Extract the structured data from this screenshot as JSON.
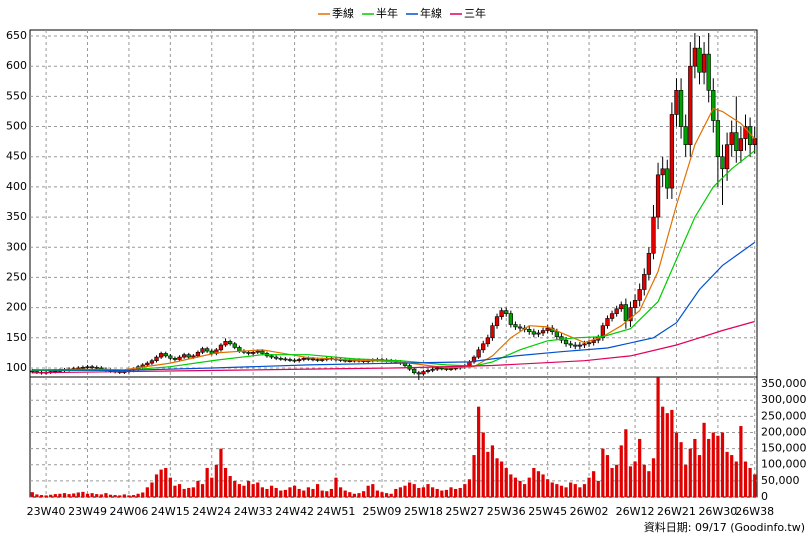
{
  "chart_data": {
    "type": "candlestick",
    "categories": [
      null,
      null,
      null,
      "23W40",
      null,
      null,
      null,
      null,
      null,
      null,
      null,
      null,
      "23W49",
      null,
      null,
      null,
      null,
      null,
      null,
      null,
      null,
      "24W06",
      null,
      null,
      null,
      null,
      null,
      null,
      null,
      null,
      "24W15",
      null,
      null,
      null,
      null,
      null,
      null,
      null,
      null,
      "24W24",
      null,
      null,
      null,
      null,
      null,
      null,
      null,
      null,
      "24W33",
      null,
      null,
      null,
      null,
      null,
      null,
      null,
      null,
      "24W42",
      null,
      null,
      null,
      null,
      null,
      null,
      null,
      null,
      "24W51",
      null,
      null,
      null,
      null,
      null,
      null,
      null,
      null,
      null,
      "25W09",
      null,
      null,
      null,
      null,
      null,
      null,
      null,
      null,
      "25W18",
      null,
      null,
      null,
      null,
      null,
      null,
      null,
      null,
      "25W27",
      null,
      null,
      null,
      null,
      null,
      null,
      null,
      null,
      "25W36",
      null,
      null,
      null,
      null,
      null,
      null,
      null,
      null,
      "25W45",
      null,
      null,
      null,
      null,
      null,
      null,
      null,
      null,
      "26W02",
      null,
      null,
      null,
      null,
      null,
      null,
      null,
      null,
      null,
      "26W12",
      null,
      null,
      null,
      null,
      null,
      null,
      null,
      null,
      "26W21",
      null,
      null,
      null,
      null,
      null,
      null,
      null,
      null,
      "26W30",
      null,
      null,
      null,
      null,
      null,
      null,
      null,
      "26W38"
    ],
    "open": [
      95,
      94,
      93,
      92,
      93,
      94,
      95,
      96,
      97,
      98,
      99,
      100,
      101,
      102,
      101,
      100,
      98,
      96,
      95,
      94,
      93,
      94,
      96,
      98,
      102,
      105,
      108,
      112,
      118,
      124,
      120,
      116,
      114,
      118,
      122,
      118,
      120,
      126,
      132,
      128,
      124,
      130,
      138,
      144,
      140,
      134,
      128,
      126,
      124,
      126,
      128,
      124,
      120,
      118,
      116,
      115,
      114,
      113,
      112,
      114,
      116,
      115,
      114,
      113,
      114,
      116,
      115,
      114,
      113,
      112,
      112,
      113,
      112,
      111,
      112,
      113,
      114,
      113,
      112,
      111,
      110,
      108,
      104,
      98,
      92,
      90,
      94,
      96,
      98,
      100,
      99,
      98,
      99,
      100,
      102,
      104,
      110,
      118,
      130,
      140,
      150,
      170,
      185,
      195,
      190,
      172,
      168,
      166,
      164,
      160,
      156,
      158,
      162,
      166,
      160,
      152,
      146,
      140,
      138,
      136,
      138,
      140,
      142,
      146,
      150,
      170,
      182,
      190,
      198,
      205,
      178,
      200,
      212,
      230,
      255,
      290,
      350,
      420,
      430,
      398,
      520,
      560,
      500,
      470,
      600,
      630,
      590,
      620,
      560,
      510,
      450,
      430,
      470,
      490,
      460,
      480,
      500,
      470
    ],
    "high": [
      98,
      97,
      96,
      96,
      97,
      98,
      99,
      100,
      101,
      102,
      103,
      104,
      105,
      105,
      104,
      103,
      101,
      99,
      98,
      97,
      97,
      99,
      101,
      105,
      108,
      111,
      115,
      121,
      127,
      127,
      123,
      119,
      121,
      125,
      125,
      123,
      129,
      135,
      135,
      131,
      133,
      141,
      149,
      147,
      143,
      137,
      131,
      129,
      129,
      131,
      131,
      127,
      123,
      121,
      119,
      118,
      117,
      116,
      117,
      119,
      119,
      118,
      117,
      117,
      119,
      119,
      118,
      117,
      116,
      115,
      116,
      116,
      115,
      115,
      116,
      117,
      117,
      116,
      115,
      114,
      113,
      111,
      107,
      101,
      95,
      97,
      99,
      101,
      103,
      103,
      102,
      102,
      103,
      105,
      107,
      113,
      121,
      135,
      145,
      155,
      175,
      190,
      200,
      200,
      195,
      177,
      173,
      171,
      169,
      165,
      163,
      167,
      171,
      171,
      165,
      157,
      151,
      145,
      143,
      143,
      145,
      147,
      151,
      155,
      175,
      187,
      195,
      203,
      210,
      215,
      210,
      222,
      240,
      265,
      300,
      370,
      440,
      450,
      445,
      540,
      580,
      580,
      520,
      640,
      655,
      650,
      640,
      655,
      580,
      530,
      470,
      490,
      510,
      550,
      500,
      520,
      515,
      500
    ],
    "low": [
      91,
      90,
      89,
      89,
      90,
      91,
      92,
      93,
      94,
      95,
      96,
      97,
      98,
      98,
      97,
      95,
      93,
      92,
      91,
      90,
      90,
      91,
      93,
      95,
      99,
      102,
      105,
      109,
      115,
      117,
      113,
      111,
      111,
      115,
      115,
      115,
      117,
      123,
      125,
      121,
      121,
      127,
      135,
      137,
      131,
      125,
      123,
      121,
      121,
      123,
      121,
      117,
      115,
      113,
      112,
      111,
      110,
      109,
      109,
      111,
      112,
      111,
      110,
      110,
      111,
      112,
      111,
      110,
      109,
      109,
      109,
      109,
      108,
      108,
      109,
      110,
      110,
      109,
      108,
      107,
      105,
      101,
      95,
      89,
      80,
      87,
      91,
      93,
      95,
      96,
      95,
      95,
      96,
      97,
      99,
      101,
      107,
      115,
      125,
      135,
      145,
      165,
      180,
      185,
      167,
      163,
      161,
      159,
      155,
      151,
      151,
      153,
      157,
      155,
      147,
      141,
      135,
      133,
      131,
      131,
      133,
      135,
      137,
      141,
      145,
      165,
      177,
      185,
      193,
      165,
      168,
      190,
      202,
      220,
      245,
      280,
      330,
      400,
      380,
      380,
      500,
      480,
      450,
      450,
      580,
      570,
      570,
      540,
      490,
      400,
      370,
      410,
      450,
      440,
      440,
      460,
      450,
      455
    ],
    "close": [
      94,
      93,
      92,
      93,
      94,
      95,
      96,
      97,
      98,
      99,
      100,
      101,
      102,
      101,
      100,
      98,
      96,
      95,
      94,
      93,
      94,
      96,
      98,
      102,
      105,
      108,
      112,
      118,
      124,
      120,
      116,
      114,
      118,
      122,
      118,
      120,
      126,
      132,
      128,
      124,
      130,
      138,
      144,
      140,
      134,
      128,
      126,
      124,
      126,
      128,
      124,
      120,
      118,
      116,
      115,
      114,
      113,
      112,
      114,
      116,
      115,
      114,
      113,
      114,
      116,
      115,
      114,
      113,
      112,
      112,
      113,
      112,
      111,
      112,
      113,
      114,
      113,
      112,
      111,
      110,
      108,
      104,
      98,
      92,
      90,
      94,
      96,
      98,
      100,
      99,
      98,
      99,
      100,
      102,
      104,
      110,
      118,
      130,
      140,
      150,
      170,
      185,
      195,
      190,
      172,
      168,
      166,
      164,
      160,
      156,
      158,
      162,
      166,
      160,
      152,
      146,
      140,
      138,
      136,
      138,
      140,
      142,
      146,
      150,
      170,
      182,
      190,
      198,
      205,
      178,
      200,
      212,
      230,
      255,
      290,
      350,
      420,
      430,
      398,
      520,
      560,
      500,
      470,
      600,
      630,
      590,
      620,
      560,
      510,
      450,
      430,
      470,
      490,
      460,
      480,
      500,
      470,
      480
    ],
    "up_color": "#e00000",
    "down_color": "#00a000",
    "series": [
      {
        "name": "季線",
        "color": "#e07000",
        "x": [
          0,
          10,
          20,
          30,
          40,
          50,
          60,
          70,
          80,
          90,
          96,
          100,
          104,
          108,
          112,
          116,
          120,
          124,
          128,
          132,
          136,
          140,
          144,
          148,
          150,
          152,
          154,
          157
        ],
        "values": [
          96,
          98,
          97,
          108,
          125,
          130,
          117,
          113,
          110,
          100,
          102,
          120,
          150,
          170,
          168,
          155,
          142,
          152,
          170,
          195,
          260,
          370,
          470,
          530,
          525,
          515,
          505,
          480
        ]
      },
      {
        "name": "半年",
        "color": "#00cc00",
        "x": [
          0,
          20,
          30,
          40,
          50,
          60,
          70,
          80,
          90,
          96,
          100,
          106,
          112,
          118,
          124,
          130,
          136,
          140,
          144,
          148,
          152,
          157
        ],
        "values": [
          96,
          96,
          102,
          113,
          122,
          122,
          115,
          112,
          105,
          103,
          110,
          130,
          145,
          150,
          152,
          165,
          210,
          280,
          350,
          400,
          430,
          460
        ]
      },
      {
        "name": "年線",
        "color": "#0050d0",
        "x": [
          0,
          20,
          40,
          60,
          80,
          95,
          105,
          115,
          125,
          135,
          140,
          145,
          150,
          157
        ],
        "values": [
          97,
          96,
          100,
          105,
          108,
          110,
          120,
          127,
          133,
          150,
          175,
          230,
          270,
          308
        ]
      },
      {
        "name": "三年",
        "color": "#e0005a",
        "x": [
          0,
          40,
          80,
          100,
          120,
          130,
          140,
          145,
          150,
          157
        ],
        "values": [
          92,
          96,
          100,
          104,
          112,
          120,
          138,
          150,
          162,
          177
        ]
      }
    ],
    "ylim": [
      85,
      660
    ],
    "yticks": [
      100,
      150,
      200,
      250,
      300,
      350,
      400,
      450,
      500,
      550,
      600,
      650
    ],
    "grid": true,
    "volume": {
      "color": "#e00000",
      "values": [
        15000,
        8000,
        6000,
        5000,
        7000,
        9000,
        10000,
        12000,
        9000,
        11000,
        14000,
        16000,
        10000,
        12000,
        9000,
        8000,
        12000,
        7000,
        6000,
        5000,
        8000,
        5000,
        6000,
        10000,
        14000,
        30000,
        45000,
        70000,
        85000,
        90000,
        60000,
        35000,
        40000,
        25000,
        28000,
        30000,
        50000,
        40000,
        90000,
        60000,
        100000,
        150000,
        90000,
        65000,
        50000,
        40000,
        35000,
        50000,
        40000,
        45000,
        30000,
        25000,
        35000,
        28000,
        20000,
        22000,
        30000,
        35000,
        25000,
        20000,
        30000,
        25000,
        40000,
        20000,
        18000,
        25000,
        60000,
        30000,
        20000,
        15000,
        10000,
        12000,
        18000,
        35000,
        40000,
        20000,
        15000,
        12000,
        10000,
        25000,
        30000,
        35000,
        45000,
        40000,
        28000,
        30000,
        40000,
        30000,
        25000,
        20000,
        22000,
        30000,
        25000,
        28000,
        40000,
        55000,
        130000,
        280000,
        200000,
        140000,
        160000,
        120000,
        110000,
        90000,
        70000,
        60000,
        50000,
        40000,
        60000,
        90000,
        80000,
        70000,
        55000,
        45000,
        40000,
        35000,
        30000,
        45000,
        40000,
        30000,
        40000,
        60000,
        80000,
        50000,
        150000,
        130000,
        90000,
        100000,
        160000,
        210000,
        95000,
        110000,
        180000,
        100000,
        80000,
        120000,
        370000,
        280000,
        260000,
        270000,
        200000,
        170000,
        100000,
        150000,
        180000,
        130000,
        230000,
        180000,
        200000,
        190000,
        200000,
        140000,
        130000,
        110000,
        220000,
        110000,
        90000,
        70000
      ],
      "ylim": [
        0,
        372000
      ],
      "yticks": [
        0,
        {
          "value": 50000,
          "label": "50,000"
        },
        {
          "value": 100000,
          "label": "100,000"
        },
        {
          "value": 150000,
          "label": "150,000"
        },
        {
          "value": 200000,
          "label": "200,000"
        },
        {
          "value": 250000,
          "label": "250,000"
        },
        {
          "value": 300000,
          "label": "300,000"
        },
        {
          "value": 350000,
          "label": "350,000"
        }
      ]
    },
    "footer": "資料日期: 09/17 (Goodinfo.tw)"
  }
}
